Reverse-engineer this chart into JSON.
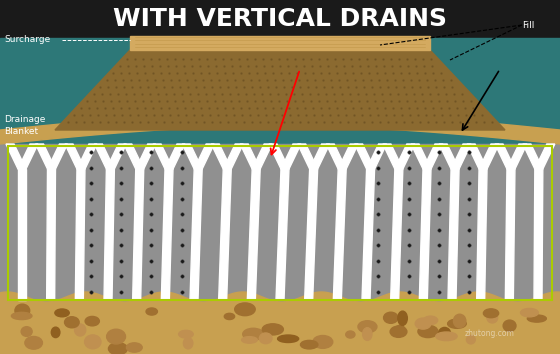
{
  "title": "WITH VERTICAL DRAINS",
  "title_color": "#ffffff",
  "title_fontsize": 18,
  "bg_color": "#2d7878",
  "dark_bg": "#1a1a1a",
  "fill_color": "#8b6a30",
  "surcharge_color": "#d4aa60",
  "blanket_color": "#c8a050",
  "drain_color": "#ffffff",
  "soil_color": "#909090",
  "bottom_sand_color": "#c8a050",
  "bottom_pebble_color": "#a07840",
  "label_surcharge": "Surcharge",
  "label_drainage": "Drainage",
  "label_blanket": "Blanket",
  "label_fill": "Fill",
  "green_rect_color": "#aacc00",
  "num_drains": 18,
  "watermark": "zhutong.com"
}
